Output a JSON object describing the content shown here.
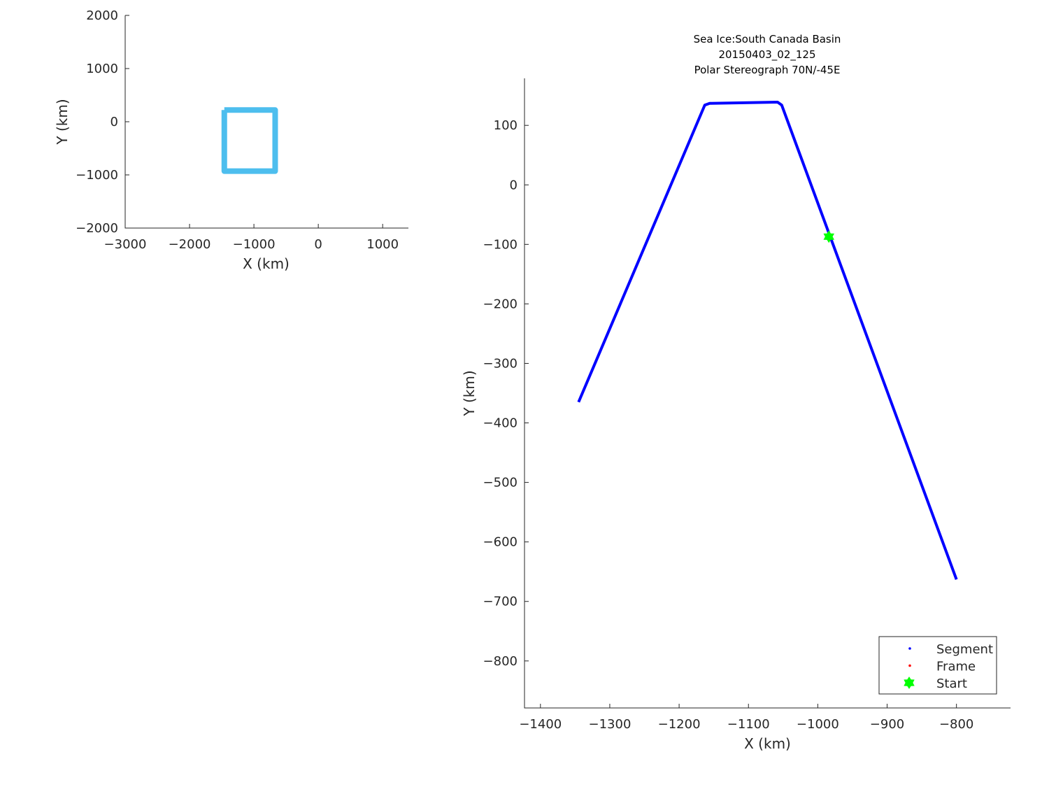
{
  "chart_data": [
    {
      "type": "line",
      "title": "",
      "xlabel": "X (km)",
      "ylabel": "Y (km)",
      "xlim": [
        -3000,
        1400
      ],
      "ylim": [
        -2000,
        2000
      ],
      "xticks": [
        -3000,
        -2000,
        -1000,
        0,
        1000
      ],
      "yticks": [
        -2000,
        -1000,
        0,
        1000,
        2000
      ],
      "xtick_labels": [
        "−3000",
        "−2000",
        "−1000",
        "0",
        "1000"
      ],
      "ytick_labels": [
        "−2000",
        "−1000",
        "0",
        "1000",
        "2000"
      ],
      "grid": false,
      "series": [
        {
          "color": "#4dbeee",
          "x": [
            -1460,
            -670,
            -670,
            -1460,
            -1460
          ],
          "y": [
            220,
            220,
            -930,
            -930,
            220
          ]
        }
      ]
    },
    {
      "type": "line",
      "title": [
        "Sea Ice:South Canada Basin",
        "20150403_02_125",
        "Polar Stereograph 70N/-45E"
      ],
      "xlabel": "X (km)",
      "ylabel": "Y (km)",
      "xlim": [
        -1423,
        -722
      ],
      "ylim": [
        -879,
        179
      ],
      "xticks": [
        -1400,
        -1300,
        -1200,
        -1100,
        -1000,
        -900,
        -800
      ],
      "yticks": [
        100,
        0,
        -100,
        -200,
        -300,
        -400,
        -500,
        -600,
        -700,
        -800
      ],
      "xtick_labels": [
        "−1400",
        "−1300",
        "−1200",
        "−1100",
        "−1000",
        "−900",
        "−800"
      ],
      "ytick_labels": [
        "100",
        "0",
        "−100",
        "−200",
        "−300",
        "−400",
        "−500",
        "−600",
        "−700",
        "−800"
      ],
      "grid": false,
      "legend_position": "bottom-right",
      "series": [
        {
          "name": "Segment",
          "color": "#0000ff",
          "x": [
            -1345,
            -1163,
            -1156,
            -1058,
            -1052,
            -800
          ],
          "y": [
            -365,
            134,
            137,
            139,
            134,
            -663
          ]
        },
        {
          "name": "Frame",
          "color": "#ff0000",
          "x": [],
          "y": []
        },
        {
          "name": "Start",
          "color": "#00ff00",
          "marker": "hexagram",
          "x": [
            -984
          ],
          "y": [
            -87
          ]
        }
      ]
    }
  ]
}
